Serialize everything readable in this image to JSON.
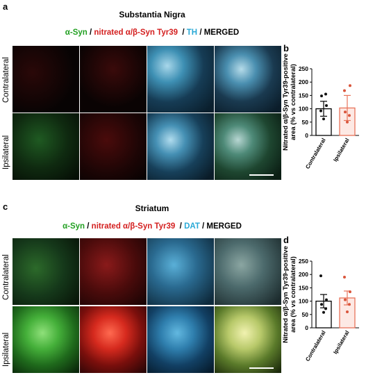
{
  "panels": {
    "a": {
      "letter": "a",
      "title": "Substantia Nigra",
      "legend": [
        {
          "text": "α-Syn",
          "color": "#22a022"
        },
        {
          "text": " / ",
          "color": "#000000"
        },
        {
          "text": "nitrated α/β-Syn Tyr39",
          "color": "#d42020"
        },
        {
          "text": "  / ",
          "color": "#000000"
        },
        {
          "text": "TH",
          "color": "#2aa9d6"
        },
        {
          "text": " / MERGED",
          "color": "#000000"
        }
      ],
      "rows": [
        "Contralateral",
        "Ipsilateral"
      ]
    },
    "c": {
      "letter": "c",
      "title": "Striatum",
      "legend": [
        {
          "text": "α-Syn",
          "color": "#22a022"
        },
        {
          "text": " / ",
          "color": "#000000"
        },
        {
          "text": "nitrated α/β-Syn Tyr39",
          "color": "#d42020"
        },
        {
          "text": "  / ",
          "color": "#000000"
        },
        {
          "text": "DAT",
          "color": "#2aa9d6"
        },
        {
          "text": " / MERGED",
          "color": "#000000"
        }
      ],
      "rows": [
        "Contralateral",
        "Ipsilateral"
      ]
    }
  },
  "chart_data": [
    {
      "letter": "b",
      "type": "bar",
      "categories": [
        "Contralateral",
        "Ipsilateral"
      ],
      "values": [
        100,
        103
      ],
      "errors": [
        28,
        47
      ],
      "bar_colors": [
        "#000000",
        "#e8735a"
      ],
      "points": [
        [
          92,
          112,
          148,
          155,
          62
        ],
        [
          168,
          187,
          88,
          75,
          50
        ]
      ],
      "ylabel": "Nitrated α/β-Syn Tyr39-positive\narea (% vs contralateral)",
      "ylim": [
        0,
        250
      ],
      "yticks": [
        "0",
        "50",
        "100",
        "150",
        "200",
        "250"
      ]
    },
    {
      "letter": "d",
      "type": "bar",
      "categories": [
        "Contralateral",
        "Ipsilateral"
      ],
      "values": [
        100,
        112
      ],
      "errors": [
        25,
        26
      ],
      "bar_colors": [
        "#000000",
        "#e8735a"
      ],
      "points": [
        [
          195,
          105,
          88,
          72,
          58
        ],
        [
          190,
          135,
          105,
          88,
          60
        ]
      ],
      "ylabel": "Nitrated α/β-Syn Tyr39-positive\narea (% vs contralateral)",
      "ylim": [
        0,
        250
      ],
      "yticks": [
        "0",
        "50",
        "100",
        "150",
        "200",
        "250"
      ]
    }
  ]
}
